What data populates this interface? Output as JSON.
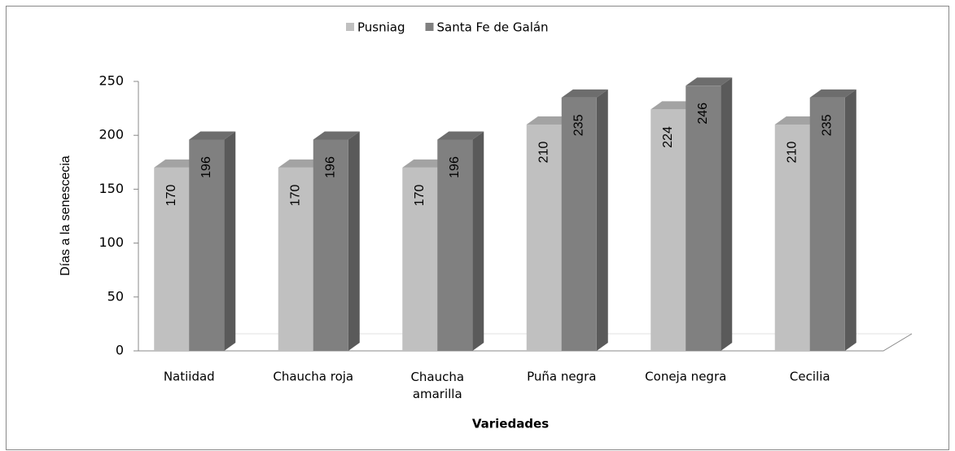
{
  "chart_data": {
    "type": "bar3d",
    "categories": [
      "Natiidad",
      "Chaucha roja",
      "Chaucha amarilla",
      "Puña negra",
      "Coneja negra",
      "Cecilia"
    ],
    "series": [
      {
        "name": "Pusniag",
        "color": "#c0c0c0",
        "values": [
          170,
          170,
          170,
          210,
          224,
          210
        ]
      },
      {
        "name": "Santa Fe de Galán",
        "color": "#808080",
        "values": [
          196,
          196,
          196,
          235,
          246,
          235
        ]
      }
    ],
    "ylim": [
      0,
      250
    ],
    "yticks": [
      0,
      50,
      100,
      150,
      200,
      250
    ],
    "y_label": "Días a la senescecia",
    "x_label": "Variedades",
    "legend": "top",
    "data_labels": true
  }
}
